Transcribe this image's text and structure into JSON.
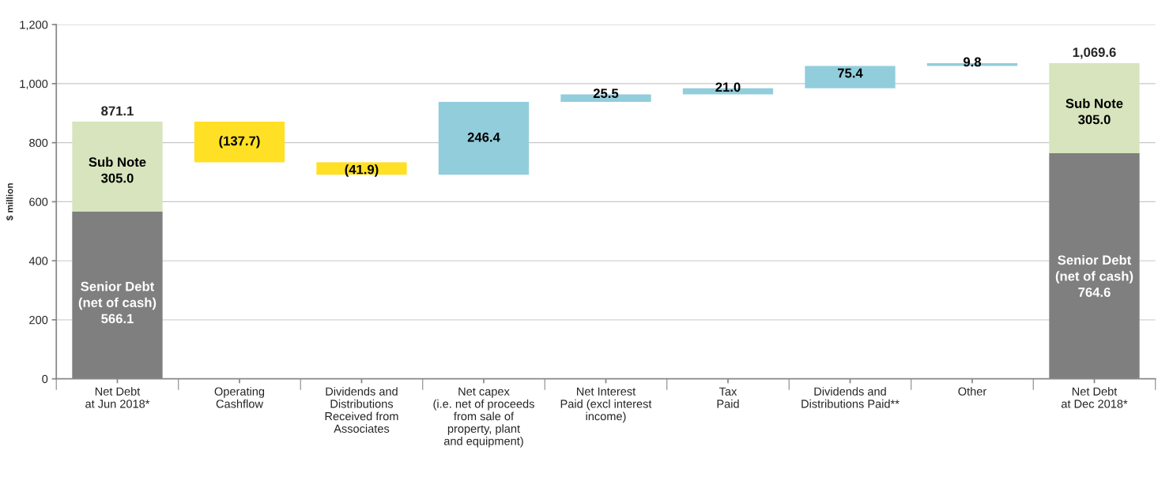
{
  "chart_data": {
    "type": "bar",
    "ylabel": "$ million",
    "categories": [
      "Net Debt\nat Jun 2018*",
      "Operating\nCashflow",
      "Dividends and\nDistributions\nReceived from\nAssociates",
      "Net capex\n(i.e. net of proceeds\nfrom sale of\nproperty, plant\nand equipment)",
      "Net Interest\nPaid (excl interest\nincome)",
      "Tax\nPaid",
      "Dividends and\nDistributions Paid**",
      "Other",
      "Net Debt\nat Dec 2018*"
    ],
    "stacked": true,
    "series": [
      {
        "name": "Senior Debt\n(net of cash)",
        "color": "#7f7f7f",
        "values": [
          566.1,
          null,
          null,
          null,
          null,
          null,
          null,
          null,
          764.6
        ],
        "value_labels": [
          "566.1",
          null,
          null,
          null,
          null,
          null,
          null,
          null,
          "764.6"
        ]
      },
      {
        "name": "Sub Note",
        "color": "#d7e4bd",
        "values": [
          305.0,
          null,
          null,
          null,
          null,
          null,
          null,
          null,
          305.0
        ],
        "value_labels": [
          "305.0",
          null,
          null,
          null,
          null,
          null,
          null,
          null,
          "305.0"
        ]
      },
      {
        "colors": [
          null,
          "#ffe025",
          "#ffe025",
          "#92cddc",
          "#92cddc",
          "#92cddc",
          "#92cddc",
          "#92cddc",
          null
        ],
        "values": [
          null,
          -137.7,
          -41.9,
          246.4,
          25.5,
          21.0,
          75.4,
          9.8,
          null
        ],
        "base": [
          null,
          871.1,
          733.4,
          691.5,
          937.9,
          963.4,
          984.4,
          1059.8,
          null
        ],
        "value_labels": [
          null,
          "(137.7)",
          "(41.9)",
          "246.4",
          "25.5",
          "21.0",
          "75.4",
          "9.8",
          null
        ]
      }
    ],
    "totals": [
      "871.1",
      null,
      null,
      null,
      null,
      null,
      null,
      null,
      "1,069.6"
    ],
    "ylim": [
      0,
      1200
    ],
    "yticks": [
      0,
      200,
      400,
      600,
      800,
      {
        "value": 1000,
        "label": "1,000"
      },
      {
        "value": 1200,
        "label": "1,200"
      }
    ],
    "grid": "y",
    "legend": false
  }
}
